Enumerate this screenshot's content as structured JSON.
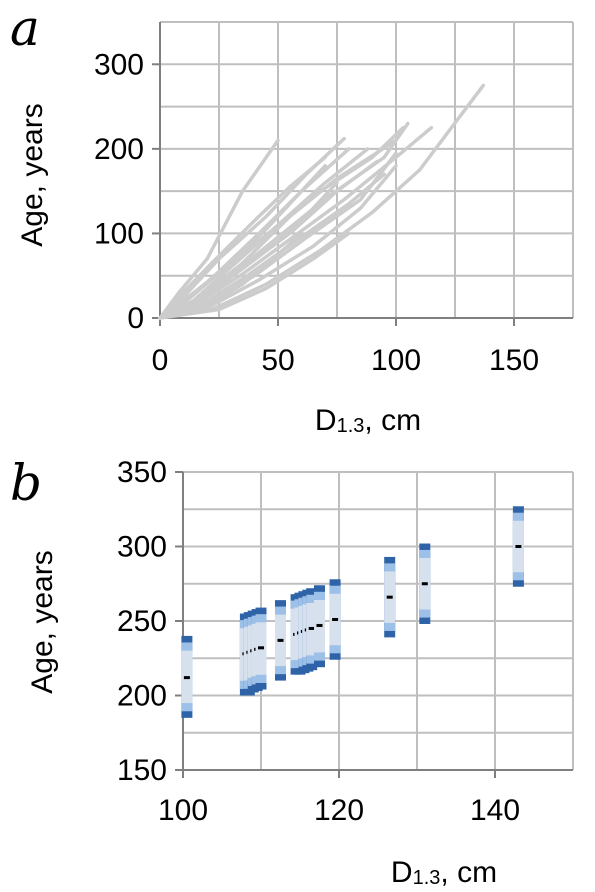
{
  "chart_data": [
    {
      "panel": "a",
      "type": "line",
      "xlabel_main": "D",
      "xlabel_sub": "1.3",
      "xlabel_rest": ", cm",
      "ylabel": "Age, years",
      "xlim": [
        0,
        175
      ],
      "ylim": [
        0,
        350
      ],
      "x_ticks": [
        0,
        50,
        100,
        150
      ],
      "y_ticks": [
        0,
        100,
        200,
        300
      ],
      "grid": true,
      "line_color": "#cccccc",
      "series": [
        {
          "x": [
            0,
            8,
            20,
            35,
            50
          ],
          "y": [
            0,
            30,
            70,
            150,
            210
          ]
        },
        {
          "x": [
            0,
            10,
            25,
            45,
            62,
            78
          ],
          "y": [
            0,
            25,
            70,
            120,
            170,
            212
          ]
        },
        {
          "x": [
            0,
            12,
            30,
            50,
            70,
            88
          ],
          "y": [
            0,
            15,
            60,
            110,
            160,
            200
          ]
        },
        {
          "x": [
            0,
            15,
            35,
            55,
            75,
            100
          ],
          "y": [
            0,
            20,
            65,
            120,
            165,
            210
          ]
        },
        {
          "x": [
            0,
            12,
            28,
            48,
            68,
            90,
            103
          ],
          "y": [
            0,
            25,
            60,
            105,
            150,
            190,
            225
          ]
        },
        {
          "x": [
            0,
            14,
            32,
            52,
            72,
            95,
            105
          ],
          "y": [
            0,
            20,
            55,
            100,
            145,
            190,
            230
          ]
        },
        {
          "x": [
            0,
            16,
            35,
            56,
            78,
            100,
            115
          ],
          "y": [
            0,
            18,
            52,
            95,
            140,
            190,
            225
          ]
        },
        {
          "x": [
            0,
            18,
            40,
            62,
            85,
            100
          ],
          "y": [
            0,
            15,
            50,
            95,
            140,
            195
          ]
        },
        {
          "x": [
            0,
            20,
            42,
            65,
            85,
            100
          ],
          "y": [
            0,
            12,
            45,
            85,
            130,
            180
          ]
        },
        {
          "x": [
            0,
            13,
            33,
            55,
            75,
            92
          ],
          "y": [
            0,
            18,
            55,
            100,
            150,
            185
          ]
        },
        {
          "x": [
            0,
            10,
            25,
            42,
            60,
            80
          ],
          "y": [
            0,
            18,
            55,
            100,
            150,
            200
          ]
        },
        {
          "x": [
            0,
            17,
            37,
            57,
            80,
            95
          ],
          "y": [
            0,
            15,
            50,
            90,
            135,
            170
          ]
        },
        {
          "x": [
            0,
            22,
            45,
            68,
            90,
            110,
            137
          ],
          "y": [
            0,
            10,
            40,
            80,
            125,
            175,
            275
          ]
        },
        {
          "x": [
            0,
            12,
            28,
            45,
            60,
            70
          ],
          "y": [
            0,
            22,
            60,
            105,
            150,
            180
          ]
        },
        {
          "x": [
            0,
            15,
            32,
            50,
            65,
            75
          ],
          "y": [
            0,
            18,
            52,
            90,
            130,
            160
          ]
        },
        {
          "x": [
            0,
            8,
            22,
            40,
            55,
            70
          ],
          "y": [
            0,
            25,
            65,
            115,
            155,
            190
          ]
        },
        {
          "x": [
            0,
            20,
            35,
            50,
            60
          ],
          "y": [
            0,
            15,
            40,
            75,
            100
          ]
        },
        {
          "x": [
            0,
            25,
            45,
            65,
            80
          ],
          "y": [
            0,
            10,
            35,
            70,
            100
          ]
        }
      ]
    },
    {
      "panel": "b",
      "type": "box",
      "xlabel_main": "D",
      "xlabel_sub": "1.3",
      "xlabel_rest": ", cm",
      "ylabel": "Age, years",
      "xlim": [
        100,
        150
      ],
      "ylim": [
        150,
        350
      ],
      "x_ticks": [
        100,
        120,
        140
      ],
      "y_ticks": [
        150,
        200,
        250,
        300,
        350
      ],
      "grid": true,
      "colors": {
        "outer": "#2e63a8",
        "mid": "#9cc0e8",
        "inner": "#d7e1ee",
        "median": "#000000"
      },
      "boxes": [
        {
          "x": 100.5,
          "low": 185,
          "high": 240,
          "median": 212
        },
        {
          "x": 108.0,
          "low": 200,
          "high": 255,
          "median": 228
        },
        {
          "x": 108.5,
          "low": 200,
          "high": 256,
          "median": 229
        },
        {
          "x": 109.0,
          "low": 202,
          "high": 257,
          "median": 230
        },
        {
          "x": 109.5,
          "low": 203,
          "high": 258,
          "median": 231
        },
        {
          "x": 110.0,
          "low": 204,
          "high": 259,
          "median": 232
        },
        {
          "x": 112.5,
          "low": 210,
          "high": 264,
          "median": 237
        },
        {
          "x": 114.5,
          "low": 214,
          "high": 268,
          "median": 241
        },
        {
          "x": 115.0,
          "low": 214,
          "high": 269,
          "median": 242
        },
        {
          "x": 115.5,
          "low": 215,
          "high": 270,
          "median": 243
        },
        {
          "x": 116.0,
          "low": 216,
          "high": 271,
          "median": 244
        },
        {
          "x": 116.5,
          "low": 217,
          "high": 272,
          "median": 245
        },
        {
          "x": 117.5,
          "low": 219,
          "high": 274,
          "median": 247
        },
        {
          "x": 119.5,
          "low": 224,
          "high": 278,
          "median": 251
        },
        {
          "x": 126.5,
          "low": 239,
          "high": 293,
          "median": 266
        },
        {
          "x": 131.0,
          "low": 248,
          "high": 302,
          "median": 275
        },
        {
          "x": 143.0,
          "low": 273,
          "high": 327,
          "median": 300
        }
      ]
    }
  ],
  "panel_letters": [
    "a",
    "b"
  ]
}
